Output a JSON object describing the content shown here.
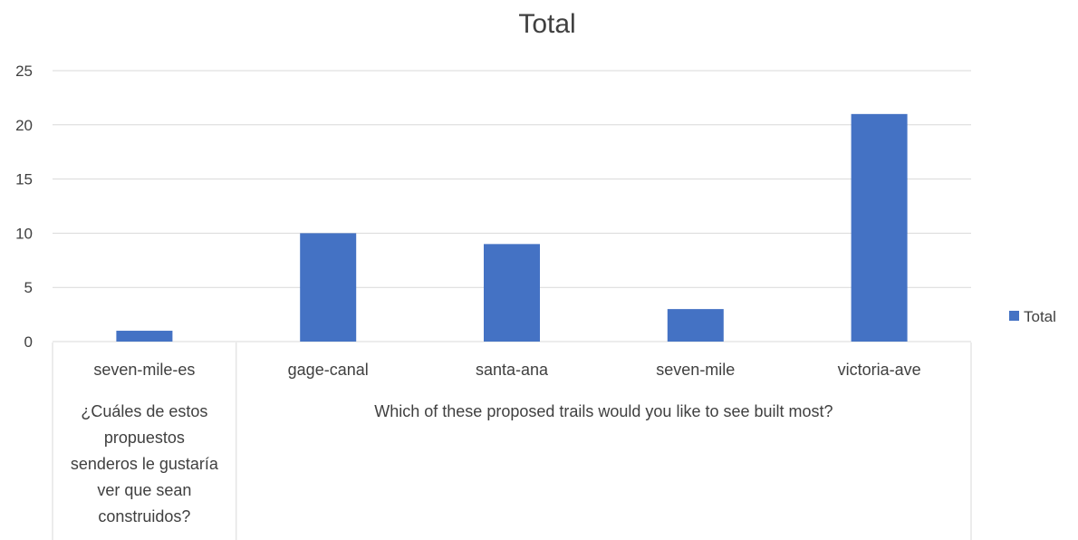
{
  "chart_data": {
    "type": "bar",
    "title": "Total",
    "xlabel": "",
    "ylabel": "",
    "ylim": [
      0,
      25
    ],
    "yticks": [
      0,
      5,
      10,
      15,
      20,
      25
    ],
    "grid": true,
    "legend": "right",
    "colors": {
      "bar": "#4472c4",
      "grid": "#d9d9d9",
      "text": "#404040"
    },
    "categories": [
      "seven-mile-es",
      "gage-canal",
      "santa-ana",
      "seven-mile",
      "victoria-ave"
    ],
    "groups": [
      {
        "label_lines": [
          "¿Cuáles de estos",
          "propuestos",
          "senderos le gustaría",
          "ver que sean",
          "construidos?"
        ],
        "categories": [
          "seven-mile-es"
        ]
      },
      {
        "label_lines": [
          "Which of these proposed trails would you like to see built most?"
        ],
        "categories": [
          "gage-canal",
          "santa-ana",
          "seven-mile",
          "victoria-ave"
        ]
      }
    ],
    "series": [
      {
        "name": "Total",
        "values": [
          1,
          10,
          9,
          3,
          21
        ]
      }
    ]
  }
}
